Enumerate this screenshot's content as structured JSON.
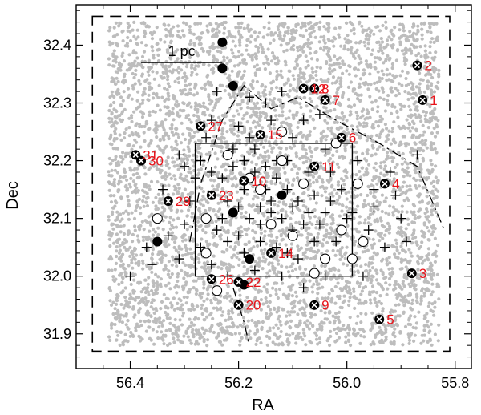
{
  "chart_data": {
    "type": "scatter",
    "xlabel": "RA",
    "ylabel": "Dec",
    "xlim": [
      56.5,
      55.77
    ],
    "ylim": [
      31.84,
      32.47
    ],
    "x_reversed": true,
    "x_ticks": [
      {
        "value": 56.4,
        "label": "56.4"
      },
      {
        "value": 56.2,
        "label": "56.2"
      },
      {
        "value": 56.0,
        "label": "56.0"
      },
      {
        "value": 55.8,
        "label": "55.8"
      }
    ],
    "y_ticks": [
      {
        "value": 31.9,
        "label": "31.9"
      },
      {
        "value": 32.0,
        "label": "32.0"
      },
      {
        "value": 32.1,
        "label": "32.1"
      },
      {
        "value": 32.2,
        "label": "32.2"
      },
      {
        "value": 32.3,
        "label": "32.3"
      },
      {
        "value": 32.4,
        "label": "32.4"
      }
    ],
    "scale_bar": {
      "label": "1 pc",
      "ra_start": 56.38,
      "ra_end": 56.23,
      "dec": 32.37
    },
    "background_field": {
      "description_color": "#bdbdbd",
      "ra_range": [
        56.44,
        55.83
      ],
      "dec_range": [
        31.88,
        32.44
      ]
    },
    "dashed_box": {
      "ra": [
        56.47,
        55.81
      ],
      "dec": [
        31.87,
        32.45
      ]
    },
    "solid_box": {
      "ra": [
        56.28,
        55.99
      ],
      "dec": [
        32.0,
        32.23
      ]
    },
    "dash_dot_boundary": [
      [
        56.29,
        32.06
      ],
      [
        56.27,
        32.16
      ],
      [
        56.23,
        32.27
      ],
      [
        56.19,
        32.33
      ],
      [
        56.14,
        32.29
      ],
      [
        56.09,
        32.31
      ],
      [
        56.02,
        32.27
      ],
      [
        55.94,
        32.23
      ],
      [
        55.87,
        32.19
      ],
      [
        55.82,
        32.08
      ]
    ],
    "dash_dot_lower_branch": [
      [
        56.21,
        31.98
      ],
      [
        56.19,
        31.92
      ],
      [
        56.18,
        31.88
      ]
    ],
    "series": [
      {
        "marker": "circle-x",
        "points": [
          {
            "ra": 55.86,
            "dec": 32.305,
            "label": "1"
          },
          {
            "ra": 55.87,
            "dec": 32.365,
            "label": "2"
          },
          {
            "ra": 55.88,
            "dec": 32.005,
            "label": "3"
          },
          {
            "ra": 55.93,
            "dec": 32.16,
            "label": "4"
          },
          {
            "ra": 55.94,
            "dec": 31.925,
            "label": "5"
          },
          {
            "ra": 56.01,
            "dec": 32.24,
            "label": "6"
          },
          {
            "ra": 56.04,
            "dec": 32.305,
            "label": "7"
          },
          {
            "ra": 56.06,
            "dec": 32.325,
            "label": "8"
          },
          {
            "ra": 56.06,
            "dec": 31.95,
            "label": "9"
          },
          {
            "ra": 56.19,
            "dec": 32.165,
            "label": "10"
          },
          {
            "ra": 56.06,
            "dec": 32.19,
            "label": "11"
          },
          {
            "ra": 56.08,
            "dec": 32.325,
            "label": "12"
          },
          {
            "ra": 56.14,
            "dec": 32.04,
            "label": "14"
          },
          {
            "ra": 56.16,
            "dec": 32.245,
            "label": "15"
          },
          {
            "ra": 56.25,
            "dec": 32.14,
            "label": "23"
          },
          {
            "ra": 56.25,
            "dec": 31.995,
            "label": "26"
          },
          {
            "ra": 56.27,
            "dec": 32.26,
            "label": "27"
          },
          {
            "ra": 56.33,
            "dec": 32.13,
            "label": "29"
          },
          {
            "ra": 56.38,
            "dec": 32.2,
            "label": "30"
          },
          {
            "ra": 56.39,
            "dec": 32.21,
            "label": "31"
          },
          {
            "ra": 56.2,
            "dec": 31.95,
            "label": "20"
          },
          {
            "ra": 56.2,
            "dec": 31.99,
            "label": "22"
          }
        ]
      },
      {
        "marker": "filled-circle",
        "points": [
          {
            "ra": 56.23,
            "dec": 32.405
          },
          {
            "ra": 56.23,
            "dec": 32.36
          },
          {
            "ra": 56.21,
            "dec": 32.33
          },
          {
            "ra": 56.21,
            "dec": 32.11
          },
          {
            "ra": 56.35,
            "dec": 32.06
          },
          {
            "ra": 56.18,
            "dec": 32.03
          },
          {
            "ra": 56.12,
            "dec": 32.14
          },
          {
            "ra": 56.19,
            "dec": 31.985
          }
        ]
      },
      {
        "marker": "open-circle",
        "points": [
          {
            "ra": 56.35,
            "dec": 32.1
          },
          {
            "ra": 56.22,
            "dec": 32.21
          },
          {
            "ra": 56.18,
            "dec": 32.17
          },
          {
            "ra": 56.12,
            "dec": 32.2
          },
          {
            "ra": 56.08,
            "dec": 32.16
          },
          {
            "ra": 56.02,
            "dec": 32.23
          },
          {
            "ra": 55.98,
            "dec": 32.16
          },
          {
            "ra": 55.97,
            "dec": 32.06
          },
          {
            "ra": 56.26,
            "dec": 32.04
          },
          {
            "ra": 56.24,
            "dec": 31.975
          },
          {
            "ra": 56.14,
            "dec": 32.09
          },
          {
            "ra": 56.1,
            "dec": 32.07
          },
          {
            "ra": 56.04,
            "dec": 32.03
          },
          {
            "ra": 56.06,
            "dec": 32.005
          },
          {
            "ra": 56.01,
            "dec": 32.08
          },
          {
            "ra": 56.16,
            "dec": 32.15
          },
          {
            "ra": 56.26,
            "dec": 32.1
          },
          {
            "ra": 56.12,
            "dec": 32.25
          },
          {
            "ra": 55.99,
            "dec": 32.03
          }
        ]
      },
      {
        "marker": "plus",
        "points": [
          {
            "ra": 56.24,
            "dec": 32.32
          },
          {
            "ra": 56.18,
            "dec": 32.31
          },
          {
            "ra": 56.15,
            "dec": 32.3
          },
          {
            "ra": 56.12,
            "dec": 32.32
          },
          {
            "ra": 56.05,
            "dec": 32.28
          },
          {
            "ra": 56.08,
            "dec": 32.27
          },
          {
            "ra": 56.2,
            "dec": 32.26
          },
          {
            "ra": 56.1,
            "dec": 32.24
          },
          {
            "ra": 56.04,
            "dec": 32.22
          },
          {
            "ra": 55.98,
            "dec": 32.2
          },
          {
            "ra": 55.95,
            "dec": 32.15
          },
          {
            "ra": 55.9,
            "dec": 32.1
          },
          {
            "ra": 55.89,
            "dec": 32.06
          },
          {
            "ra": 55.87,
            "dec": 32.21
          },
          {
            "ra": 56.3,
            "dec": 32.19
          },
          {
            "ra": 56.27,
            "dec": 32.2
          },
          {
            "ra": 56.25,
            "dec": 32.18
          },
          {
            "ra": 56.23,
            "dec": 32.17
          },
          {
            "ra": 56.21,
            "dec": 32.19
          },
          {
            "ra": 56.19,
            "dec": 32.2
          },
          {
            "ra": 56.17,
            "dec": 32.22
          },
          {
            "ra": 56.15,
            "dec": 32.19
          },
          {
            "ra": 56.13,
            "dec": 32.17
          },
          {
            "ra": 56.11,
            "dec": 32.15
          },
          {
            "ra": 56.09,
            "dec": 32.13
          },
          {
            "ra": 56.07,
            "dec": 32.11
          },
          {
            "ra": 56.05,
            "dec": 32.09
          },
          {
            "ra": 56.03,
            "dec": 32.13
          },
          {
            "ra": 56.01,
            "dec": 32.15
          },
          {
            "ra": 56.0,
            "dec": 32.1
          },
          {
            "ra": 56.22,
            "dec": 32.13
          },
          {
            "ra": 56.2,
            "dec": 32.12
          },
          {
            "ra": 56.18,
            "dec": 32.1
          },
          {
            "ra": 56.16,
            "dec": 32.12
          },
          {
            "ra": 56.14,
            "dec": 32.11
          },
          {
            "ra": 56.12,
            "dec": 32.1
          },
          {
            "ra": 56.1,
            "dec": 32.12
          },
          {
            "ra": 56.08,
            "dec": 32.09
          },
          {
            "ra": 56.06,
            "dec": 32.06
          },
          {
            "ra": 56.24,
            "dec": 32.08
          },
          {
            "ra": 56.22,
            "dec": 32.06
          },
          {
            "ra": 56.2,
            "dec": 32.07
          },
          {
            "ra": 56.16,
            "dec": 32.06
          },
          {
            "ra": 56.13,
            "dec": 32.05
          },
          {
            "ra": 56.11,
            "dec": 32.04
          },
          {
            "ra": 56.09,
            "dec": 32.03
          },
          {
            "ra": 56.27,
            "dec": 32.05
          },
          {
            "ra": 56.3,
            "dec": 32.09
          },
          {
            "ra": 56.33,
            "dec": 32.07
          },
          {
            "ra": 56.37,
            "dec": 32.05
          },
          {
            "ra": 56.4,
            "dec": 32.0
          },
          {
            "ra": 56.36,
            "dec": 32.02
          },
          {
            "ra": 56.29,
            "dec": 32.13
          },
          {
            "ra": 56.26,
            "dec": 32.24
          },
          {
            "ra": 56.28,
            "dec": 32.17
          },
          {
            "ra": 56.15,
            "dec": 32.15
          },
          {
            "ra": 56.13,
            "dec": 32.2
          },
          {
            "ra": 56.17,
            "dec": 32.18
          },
          {
            "ra": 56.19,
            "dec": 32.15
          },
          {
            "ra": 56.21,
            "dec": 32.22
          },
          {
            "ra": 56.11,
            "dec": 32.2
          },
          {
            "ra": 56.07,
            "dec": 32.18
          },
          {
            "ra": 56.03,
            "dec": 32.18
          },
          {
            "ra": 55.99,
            "dec": 32.11
          },
          {
            "ra": 55.96,
            "dec": 32.08
          },
          {
            "ra": 55.93,
            "dec": 32.05
          },
          {
            "ra": 55.92,
            "dec": 32.18
          },
          {
            "ra": 56.02,
            "dec": 32.06
          },
          {
            "ra": 56.04,
            "dec": 32.0
          },
          {
            "ra": 56.08,
            "dec": 31.98
          },
          {
            "ra": 56.12,
            "dec": 32.0
          },
          {
            "ra": 56.17,
            "dec": 32.01
          },
          {
            "ra": 56.22,
            "dec": 32.0
          },
          {
            "ra": 56.25,
            "dec": 32.02
          },
          {
            "ra": 56.31,
            "dec": 32.03
          },
          {
            "ra": 56.34,
            "dec": 32.15
          },
          {
            "ra": 56.25,
            "dec": 32.27
          },
          {
            "ra": 56.14,
            "dec": 32.27
          },
          {
            "ra": 56.16,
            "dec": 32.09
          },
          {
            "ra": 56.06,
            "dec": 32.14
          },
          {
            "ra": 56.04,
            "dec": 32.11
          },
          {
            "ra": 55.95,
            "dec": 32.12
          },
          {
            "ra": 55.97,
            "dec": 32.0
          },
          {
            "ra": 55.91,
            "dec": 32.14
          },
          {
            "ra": 56.19,
            "dec": 32.04
          },
          {
            "ra": 56.14,
            "dec": 32.13
          },
          {
            "ra": 56.1,
            "dec": 32.08
          },
          {
            "ra": 56.18,
            "dec": 32.24
          },
          {
            "ra": 56.23,
            "dec": 32.1
          },
          {
            "ra": 56.31,
            "dec": 32.21
          }
        ]
      }
    ]
  }
}
